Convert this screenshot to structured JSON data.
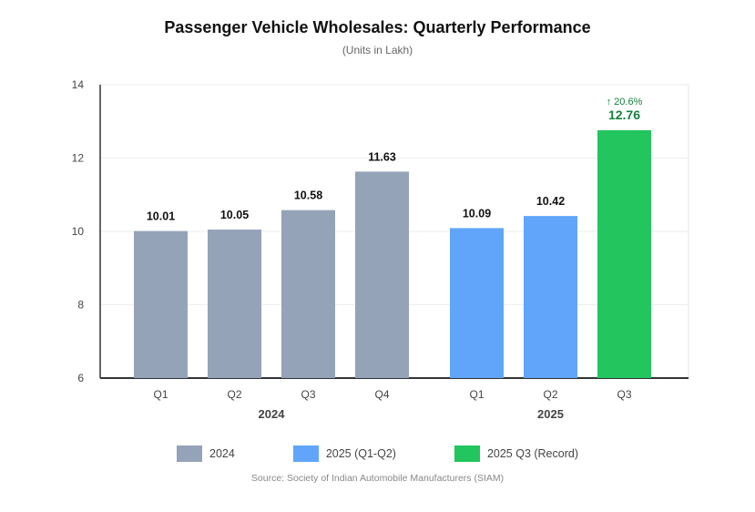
{
  "chart_data": {
    "type": "bar",
    "title": "Passenger Vehicle Wholesales: Quarterly Performance",
    "subtitle": "(Units in Lakh)",
    "ylim": [
      6,
      14
    ],
    "yticks": [
      6,
      8,
      10,
      12,
      14
    ],
    "grid": true,
    "groups": [
      {
        "label": "2024",
        "series": "2024",
        "bars": [
          {
            "category": "Q1",
            "value": 10.01,
            "label": "10.01"
          },
          {
            "category": "Q2",
            "value": 10.05,
            "label": "10.05"
          },
          {
            "category": "Q3",
            "value": 10.58,
            "label": "10.58"
          },
          {
            "category": "Q4",
            "value": 11.63,
            "label": "11.63"
          }
        ]
      },
      {
        "label": "2025",
        "series": "2025 (Q1-Q2)",
        "bars": [
          {
            "category": "Q1",
            "value": 10.09,
            "label": "10.09"
          },
          {
            "category": "Q2",
            "value": 10.42,
            "label": "10.42"
          },
          {
            "category": "Q3",
            "value": 12.76,
            "label": "12.76",
            "series": "2025 Q3 (Record)",
            "annotation": "↑ 20.6%"
          }
        ]
      }
    ],
    "legend": [
      {
        "name": "2024",
        "color": "#94a3b8"
      },
      {
        "name": "2025 (Q1-Q2)",
        "color": "#60a5fa"
      },
      {
        "name": "2025 Q3 (Record)",
        "color": "#22c55e"
      }
    ],
    "legend_position": "bottom",
    "source": "Source: Society of Indian Automobile Manufacturers (SIAM)",
    "colors": {
      "record_label": "#15803d",
      "axis": "#333333",
      "grid": "#eeeeee"
    }
  }
}
